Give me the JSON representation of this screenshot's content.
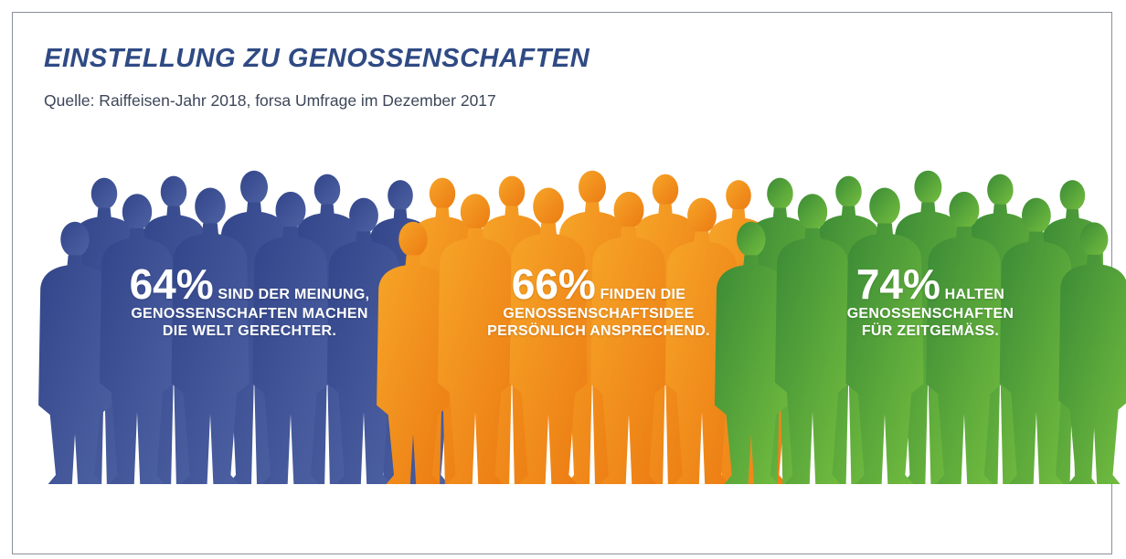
{
  "title": "EINSTELLUNG ZU GENOSSENSCHAFTEN",
  "subtitle": "Quelle: Raiffeisen-Jahr 2018, forsa Umfrage im Dezember 2017",
  "colors": {
    "title": "#2f4a84",
    "group_blue": "#3e5494",
    "group_orange": "#f18c1a",
    "group_green": "#4f9e3a"
  },
  "chart_data": {
    "type": "bar",
    "title": "EINSTELLUNG ZU GENOSSENSCHAFTEN",
    "subtitle": "Quelle: Raiffeisen-Jahr 2018, forsa Umfrage im Dezember 2017",
    "unit": "%",
    "series": [
      {
        "values": [
          64,
          66,
          74
        ],
        "value_labels": [
          "64%",
          "66%",
          "74%"
        ],
        "statements": [
          [
            "SIND DER MEINUNG,",
            "GENOSSENSCHAFTEN MACHEN",
            "DIE WELT GERECHTER."
          ],
          [
            "FINDEN DIE",
            "GENOSSENSCHAFTSIDEE",
            "PERSÖNLICH ANSPRECHEND."
          ],
          [
            "HALTEN",
            "GENOSSENSCHAFTEN",
            "FÜR ZEITGEMÄSS."
          ]
        ],
        "colors": [
          "#3e5494",
          "#f18c1a",
          "#4f9e3a"
        ]
      }
    ]
  }
}
